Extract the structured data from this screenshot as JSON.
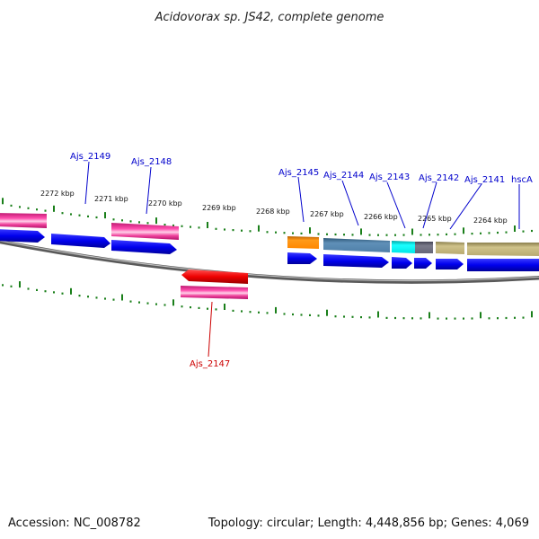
{
  "title": "Acidovorax sp. JS42, complete genome",
  "footer": {
    "accession": "Accession: NC_008782",
    "summary": "Topology: circular; Length: 4,448,856 bp; Genes: 4,069"
  },
  "colors": {
    "label_blue": "#0000cc",
    "label_red": "#cc0000",
    "backbone": "#8a8a8a",
    "tick_green": "#1a7f1a",
    "cds_blue": "#0000ee",
    "gene_pink": "#ee3399",
    "gene_red": "#ee0000",
    "orange": "#ff8800",
    "steelblue": "#4f7fa8",
    "cyan": "#00e5e5",
    "grey": "#666677",
    "khaki": "#b8aa70"
  },
  "ticks": [
    {
      "label": "2272 kbp"
    },
    {
      "label": "2271 kbp"
    },
    {
      "label": "2270 kbp"
    },
    {
      "label": "2269 kbp"
    },
    {
      "label": "2268 kbp"
    },
    {
      "label": "2267 kbp"
    },
    {
      "label": "2266 kbp"
    },
    {
      "label": "2265 kbp"
    },
    {
      "label": "2264 kbp"
    }
  ],
  "genes": [
    {
      "label": "Ajs_2149",
      "color": "blue"
    },
    {
      "label": "Ajs_2148",
      "color": "blue"
    },
    {
      "label": "Ajs_2145",
      "color": "blue"
    },
    {
      "label": "Ajs_2144",
      "color": "blue"
    },
    {
      "label": "Ajs_2143",
      "color": "blue"
    },
    {
      "label": "Ajs_2142",
      "color": "blue"
    },
    {
      "label": "Ajs_2141",
      "color": "blue"
    },
    {
      "label": "hscA",
      "color": "blue"
    },
    {
      "label": "Ajs_2147",
      "color": "red"
    }
  ]
}
